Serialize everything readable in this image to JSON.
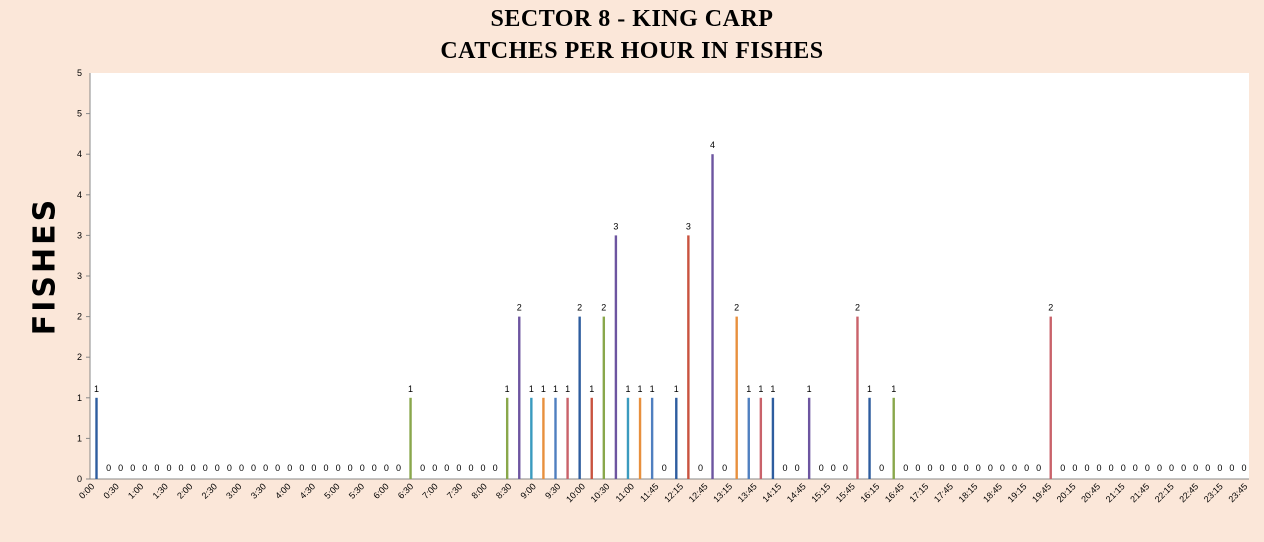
{
  "chart_data": {
    "type": "bar",
    "title": "SECTOR 8 - KING CARP",
    "subtitle": "CATCHES PER HOUR IN FISHES",
    "ylabel": "FISHES",
    "xlabel": "",
    "ylim": [
      0,
      5
    ],
    "yticks": [
      "0",
      "1",
      "1",
      "2",
      "2",
      "3",
      "3",
      "4",
      "4",
      "5"
    ],
    "grid": false,
    "categories": [
      "0:00",
      "0:15",
      "0:30",
      "0:45",
      "1:00",
      "1:15",
      "1:30",
      "1:45",
      "2:00",
      "2:15",
      "2:30",
      "2:45",
      "3:00",
      "3:15",
      "3:30",
      "3:45",
      "4:00",
      "4:15",
      "4:30",
      "4:45",
      "5:00",
      "5:15",
      "5:30",
      "5:45",
      "6:00",
      "6:15",
      "6:30",
      "6:45",
      "7:00",
      "7:15",
      "7:30",
      "7:45",
      "8:00",
      "8:15",
      "8:30",
      "8:45",
      "9:00",
      "9:15",
      "9:30",
      "9:45",
      "10:00",
      "10:15",
      "10:30",
      "10:45",
      "11:00",
      "11:15",
      "11:30",
      "11:45",
      "12:00",
      "12:15",
      "12:30",
      "12:45",
      "13:00",
      "13:15",
      "13:30",
      "13:45",
      "14:00",
      "14:15",
      "14:30",
      "14:45",
      "15:00",
      "15:15",
      "15:30",
      "15:45",
      "16:00",
      "16:15",
      "16:30",
      "16:45",
      "17:00",
      "17:15",
      "17:30",
      "17:45",
      "18:00",
      "18:15",
      "18:30",
      "18:45",
      "19:00",
      "19:15",
      "19:30",
      "19:45",
      "20:00",
      "20:15",
      "20:30",
      "20:45",
      "21:00",
      "21:15",
      "21:30",
      "21:45",
      "22:00",
      "22:15",
      "22:30",
      "22:45",
      "23:00",
      "23:15",
      "23:30",
      "23:45"
    ],
    "xtick_labels": [
      "0:00",
      "0:30",
      "1:00",
      "1:30",
      "2:00",
      "2:30",
      "3:00",
      "3:30",
      "4:00",
      "4:30",
      "5:00",
      "5:30",
      "6:00",
      "6:30",
      "7:00",
      "7:30",
      "8:00",
      "8:30",
      "9:00",
      "9:30",
      "10:00",
      "10:30",
      "11:00",
      "11:45",
      "12:15",
      "12:45",
      "13:15",
      "13:45",
      "14:15",
      "14:45",
      "15:15",
      "15:45",
      "16:15",
      "16:45",
      "17:15",
      "17:45",
      "18:15",
      "18:45",
      "19:15",
      "19:45",
      "20:15",
      "20:45",
      "21:15",
      "21:45",
      "22:15",
      "22:45",
      "23:15",
      "23:45"
    ],
    "values": [
      1,
      0,
      0,
      0,
      0,
      0,
      0,
      0,
      0,
      0,
      0,
      0,
      0,
      0,
      0,
      0,
      0,
      0,
      0,
      0,
      0,
      0,
      0,
      0,
      0,
      0,
      1,
      0,
      0,
      0,
      0,
      0,
      0,
      0,
      1,
      2,
      1,
      1,
      1,
      1,
      2,
      1,
      2,
      3,
      1,
      1,
      1,
      0,
      1,
      3,
      0,
      4,
      0,
      2,
      1,
      1,
      1,
      0,
      0,
      1,
      0,
      0,
      0,
      2,
      1,
      0,
      1,
      0,
      0,
      0,
      0,
      0,
      0,
      0,
      0,
      0,
      0,
      0,
      0,
      2,
      0,
      0,
      0,
      0,
      0,
      0,
      0,
      0,
      0,
      0,
      0,
      0,
      0,
      0,
      0,
      0
    ],
    "colors": [
      "#2e5d9f",
      "#c9533f",
      "#89a74b",
      "#6d55a0",
      "#3a9bbf",
      "#e8903d",
      "#4f7fc0",
      "#c9626a"
    ]
  }
}
